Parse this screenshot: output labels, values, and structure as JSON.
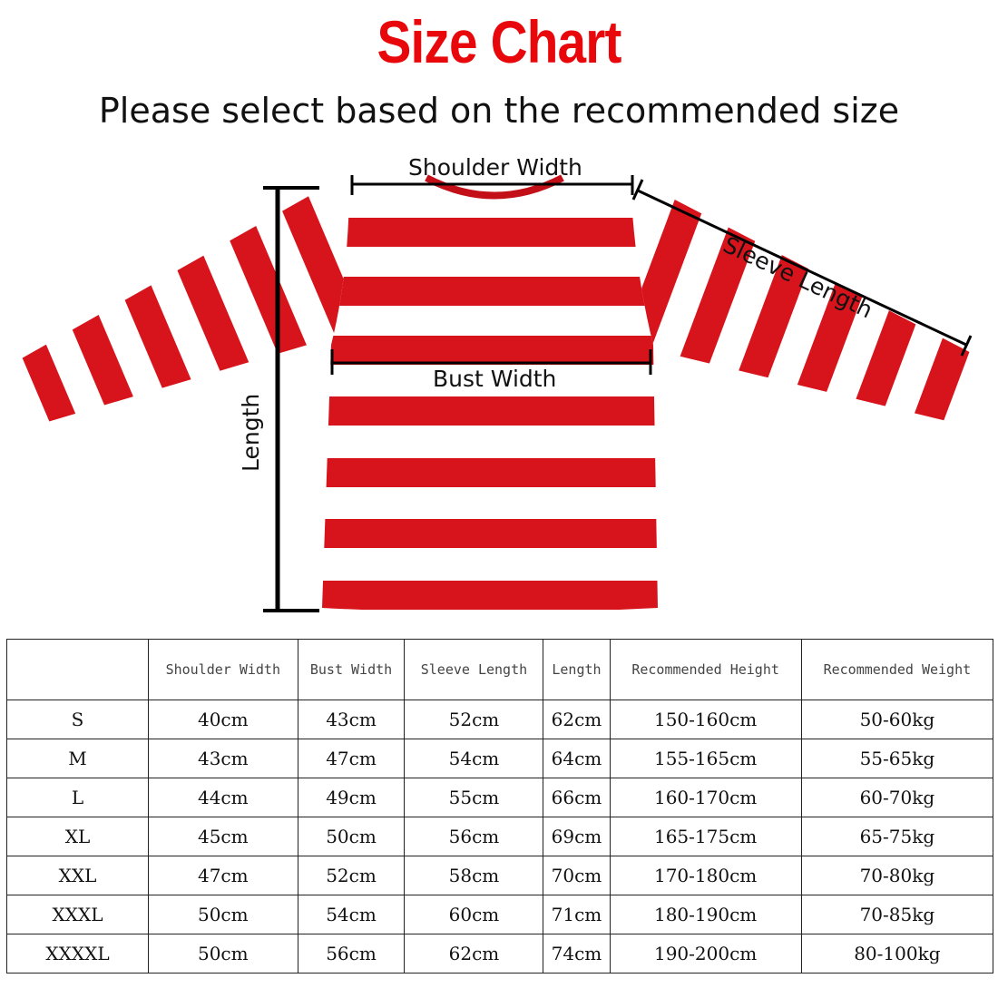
{
  "header": {
    "title": "Size Chart",
    "subtitle": "Please select based on the recommended size"
  },
  "diagram": {
    "labels": {
      "shoulder_width": "Shoulder Width",
      "sleeve_length": "Sleeve Length",
      "bust_width": "Bust Width",
      "length": "Length"
    },
    "colors": {
      "stripe_red": "#d7141c",
      "stripe_white": "#ffffff",
      "title_red": "#e8080c"
    }
  },
  "table": {
    "headers": [
      "",
      "Shoulder Width",
      "Bust Width",
      "Sleeve Length",
      "Length",
      "Recommended Height",
      "Recommended Weight"
    ],
    "rows": [
      [
        "S",
        "40cm",
        "43cm",
        "52cm",
        "62cm",
        "150-160cm",
        "50-60kg"
      ],
      [
        "M",
        "43cm",
        "47cm",
        "54cm",
        "64cm",
        "155-165cm",
        "55-65kg"
      ],
      [
        "L",
        "44cm",
        "49cm",
        "55cm",
        "66cm",
        "160-170cm",
        "60-70kg"
      ],
      [
        "XL",
        "45cm",
        "50cm",
        "56cm",
        "69cm",
        "165-175cm",
        "65-75kg"
      ],
      [
        "XXL",
        "47cm",
        "52cm",
        "58cm",
        "70cm",
        "170-180cm",
        "70-80kg"
      ],
      [
        "XXXL",
        "50cm",
        "54cm",
        "60cm",
        "71cm",
        "180-190cm",
        "70-85kg"
      ],
      [
        "XXXXL",
        "50cm",
        "56cm",
        "62cm",
        "74cm",
        "190-200cm",
        "80-100kg"
      ]
    ]
  }
}
